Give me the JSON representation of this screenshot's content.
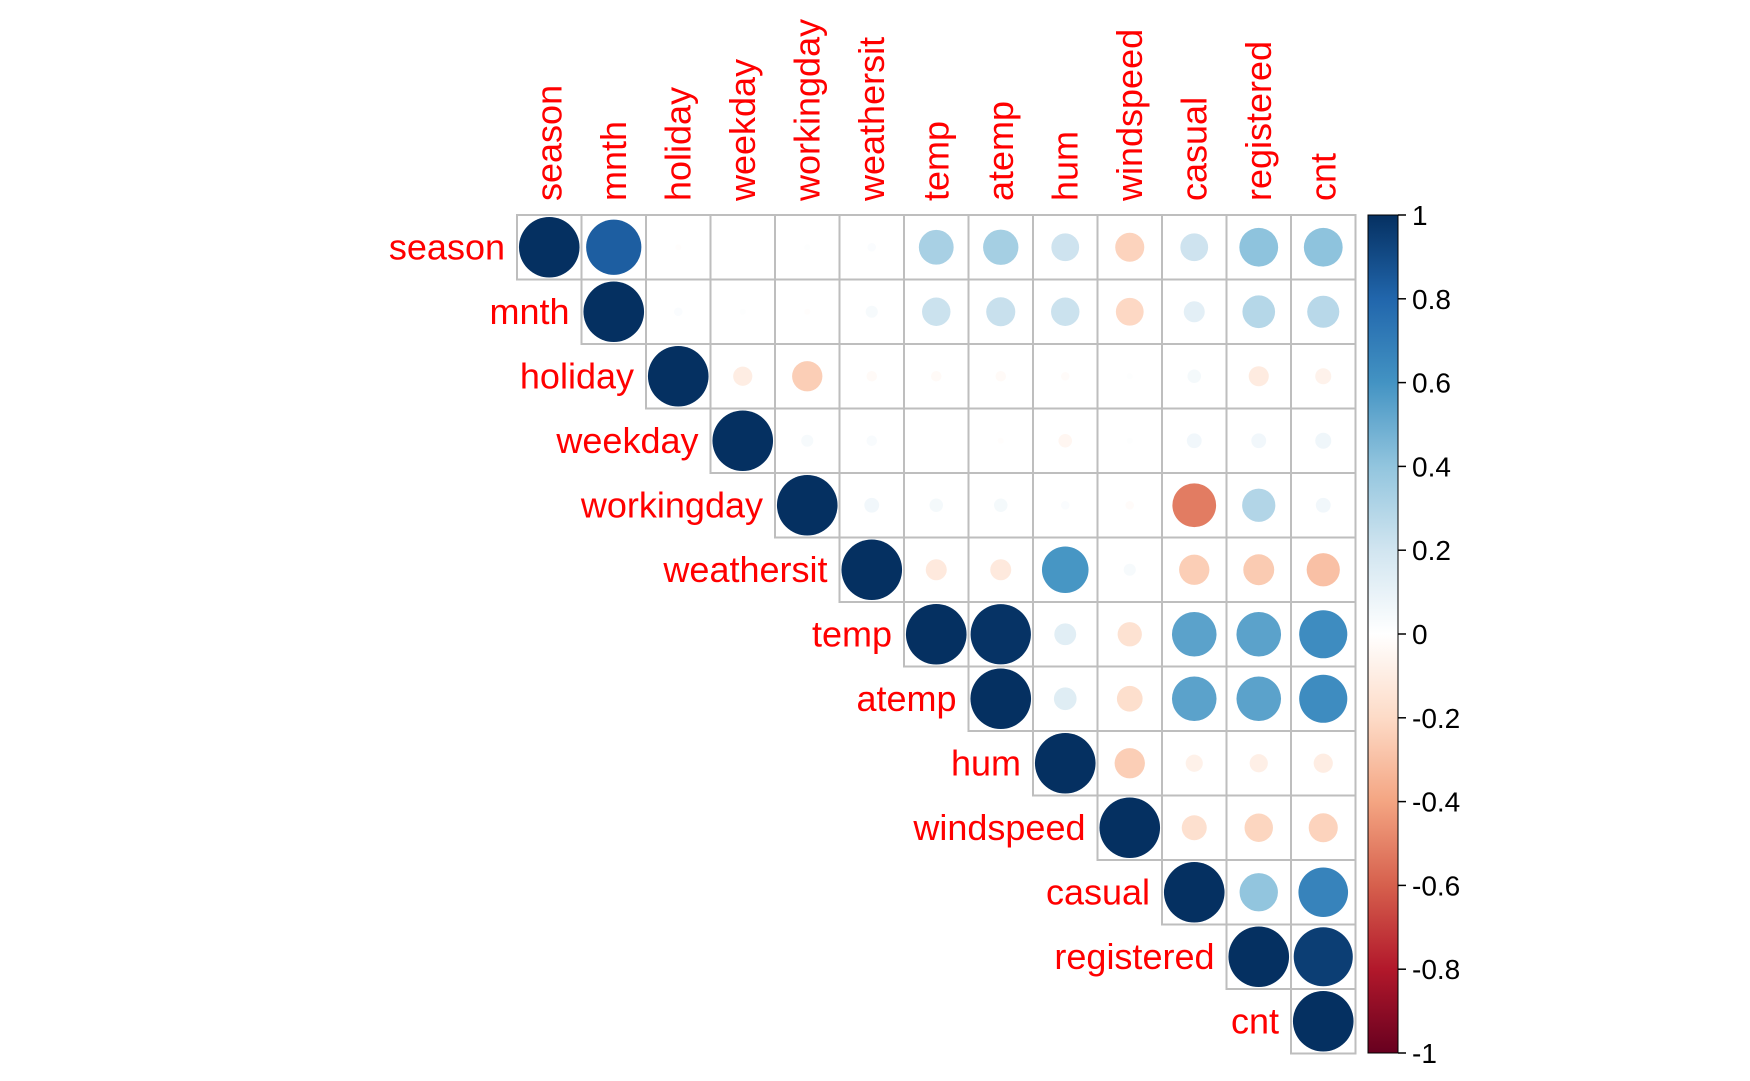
{
  "chart_data": {
    "type": "heatmap",
    "variables": [
      "season",
      "mnth",
      "holiday",
      "weekday",
      "workingday",
      "weathersit",
      "temp",
      "atemp",
      "hum",
      "windspeed",
      "casual",
      "registered",
      "cnt"
    ],
    "matrix_shape": "upper-triangle",
    "glyph": "circle",
    "label_color": "#ff0000",
    "value_range": [
      -1,
      1
    ],
    "correlations": [
      [
        1.0,
        0.83,
        -0.01,
        0.0,
        0.01,
        0.02,
        0.33,
        0.34,
        0.21,
        -0.23,
        0.21,
        0.41,
        0.41
      ],
      [
        null,
        1.0,
        0.02,
        0.01,
        -0.01,
        0.04,
        0.22,
        0.23,
        0.22,
        -0.21,
        0.12,
        0.29,
        0.28
      ],
      [
        null,
        null,
        1.0,
        -0.1,
        -0.25,
        -0.03,
        -0.03,
        -0.03,
        -0.02,
        0.01,
        0.05,
        -0.11,
        -0.07
      ],
      [
        null,
        null,
        null,
        1.0,
        0.04,
        0.03,
        0.0,
        -0.01,
        -0.05,
        0.01,
        0.06,
        0.06,
        0.07
      ],
      [
        null,
        null,
        null,
        null,
        1.0,
        0.06,
        0.05,
        0.05,
        0.02,
        -0.02,
        -0.52,
        0.3,
        0.06
      ],
      [
        null,
        null,
        null,
        null,
        null,
        1.0,
        -0.12,
        -0.12,
        0.59,
        0.04,
        -0.25,
        -0.26,
        -0.3
      ],
      [
        null,
        null,
        null,
        null,
        null,
        null,
        1.0,
        0.99,
        0.13,
        -0.16,
        0.54,
        0.54,
        0.63
      ],
      [
        null,
        null,
        null,
        null,
        null,
        null,
        null,
        1.0,
        0.14,
        -0.18,
        0.54,
        0.54,
        0.63
      ],
      [
        null,
        null,
        null,
        null,
        null,
        null,
        null,
        null,
        1.0,
        -0.25,
        -0.08,
        -0.09,
        -0.1
      ],
      [
        null,
        null,
        null,
        null,
        null,
        null,
        null,
        null,
        null,
        1.0,
        -0.17,
        -0.22,
        -0.23
      ],
      [
        null,
        null,
        null,
        null,
        null,
        null,
        null,
        null,
        null,
        null,
        1.0,
        0.4,
        0.67
      ],
      [
        null,
        null,
        null,
        null,
        null,
        null,
        null,
        null,
        null,
        null,
        null,
        1.0,
        0.95
      ],
      [
        null,
        null,
        null,
        null,
        null,
        null,
        null,
        null,
        null,
        null,
        null,
        null,
        1.0
      ]
    ],
    "colorbar": {
      "ticks": [
        "1",
        "0.8",
        "0.6",
        "0.4",
        "0.2",
        "0",
        "-0.2",
        "-0.4",
        "-0.6",
        "-0.8",
        "-1"
      ],
      "tick_values": [
        1,
        0.8,
        0.6,
        0.4,
        0.2,
        0,
        -0.2,
        -0.4,
        -0.6,
        -0.8,
        -1
      ],
      "palette": [
        "#67001F",
        "#B2182B",
        "#D6604D",
        "#F4A582",
        "#FDDBC7",
        "#FFFFFF",
        "#D1E5F0",
        "#92C5DE",
        "#4393C3",
        "#2166AC",
        "#053061"
      ]
    },
    "grid_color": "#bebebe"
  }
}
